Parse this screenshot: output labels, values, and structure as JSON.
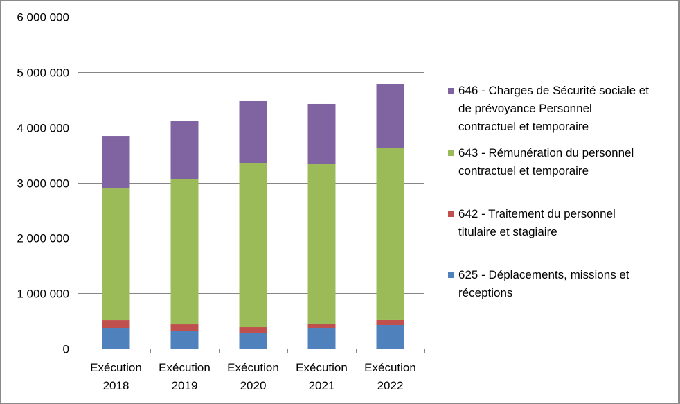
{
  "chart_data": {
    "type": "bar",
    "stacked": true,
    "title": "",
    "xlabel": "",
    "ylabel": "",
    "categories": [
      "Exécution 2018",
      "Exécution 2019",
      "Exécution 2020",
      "Exécution 2021",
      "Exécution 2022"
    ],
    "category_lines": [
      [
        "Exécution",
        "2018"
      ],
      [
        "Exécution",
        "2019"
      ],
      [
        "Exécution",
        "2020"
      ],
      [
        "Exécution",
        "2021"
      ],
      [
        "Exécution",
        "2022"
      ]
    ],
    "ylim": [
      0,
      6000000
    ],
    "yticks": [
      0,
      1000000,
      2000000,
      3000000,
      4000000,
      5000000,
      6000000
    ],
    "ytick_labels": [
      "0",
      "1 000 000",
      "2 000 000",
      "3 000 000",
      "4 000 000",
      "5 000 000",
      "6 000 000"
    ],
    "grid": "horizontal",
    "legend_position": "right",
    "series": [
      {
        "name": "625 - Déplacements, missions et réceptions",
        "color": "#4F81BD",
        "values": [
          363000,
          313000,
          288000,
          363000,
          426000
        ]
      },
      {
        "name": "642 - Traitement du personnel titulaire et stagiaire",
        "color": "#C0504D",
        "values": [
          150000,
          125000,
          100000,
          88000,
          88000
        ]
      },
      {
        "name": "643 - Rémunération du personnel contractuel et temporaire",
        "color": "#9BBB59",
        "values": [
          2380000,
          2631000,
          2969000,
          2881000,
          3106000
        ]
      },
      {
        "name": "646 - Charges de Sécurité sociale et de prévoyance Personnel contractuel et temporaire",
        "color": "#8064A2",
        "values": [
          952000,
          1040000,
          1115000,
          1090000,
          1165000
        ]
      }
    ]
  },
  "legend": {
    "items": [
      {
        "lines": [
          "646 - Charges de Sécurité sociale et",
          "de prévoyance Personnel",
          "contractuel et temporaire"
        ],
        "color": "#8064A2"
      },
      {
        "lines": [
          "643 - Rémunération du personnel",
          "contractuel et temporaire"
        ],
        "color": "#9BBB59"
      },
      {
        "lines": [
          "642 - Traitement du personnel",
          "titulaire et stagiaire"
        ],
        "color": "#C0504D"
      },
      {
        "lines": [
          "625 - Déplacements, missions et",
          "réceptions"
        ],
        "color": "#4F81BD"
      }
    ]
  }
}
